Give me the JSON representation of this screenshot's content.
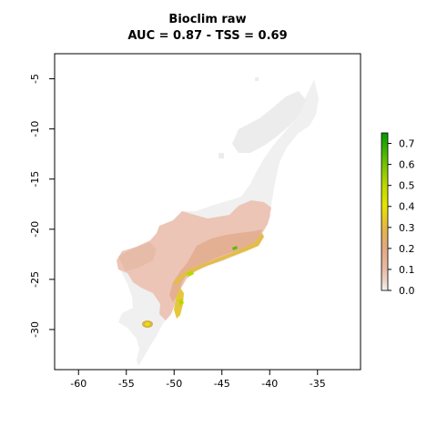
{
  "title": {
    "line1": "Bioclim raw",
    "line2": "AUC = 0.87 - TSS = 0.69"
  },
  "chart_data": {
    "type": "heatmap",
    "subject": "habitat suitability map",
    "x_axis": {
      "range": [
        -62.5,
        -30.5
      ],
      "ticks": [
        -60,
        -55,
        -50,
        -45,
        -40,
        -35
      ]
    },
    "y_axis": {
      "range": [
        -34.0,
        -2.5
      ],
      "ticks": [
        -5,
        -10,
        -15,
        -20,
        -25,
        -30
      ],
      "label_rotation": "vertical"
    },
    "legend": {
      "placement": "right",
      "range": [
        0,
        0.75
      ],
      "ticks": [
        0.0,
        0.1,
        0.2,
        0.3,
        0.4,
        0.5,
        0.6,
        0.7
      ],
      "tick_labels": [
        "0.0",
        "0.1",
        "0.2",
        "0.3",
        "0.4",
        "0.5",
        "0.6",
        "0.7"
      ],
      "colors": [
        "#f2f2f2",
        "#e8b9a4",
        "#e2a97c",
        "#e6b743",
        "#e6e400",
        "#b8d600",
        "#5cbd00",
        "#009900"
      ]
    },
    "background_region_color": "#f0f0f0",
    "grid": false
  }
}
